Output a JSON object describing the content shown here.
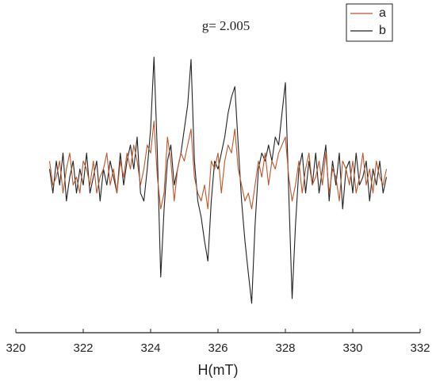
{
  "chart_data": {
    "type": "line",
    "title": "g= 2.005",
    "x_label": "H(mT)",
    "xlim": [
      320,
      332
    ],
    "xticks": [
      320,
      322,
      324,
      326,
      328,
      330,
      332
    ],
    "x": [
      321.0,
      321.1,
      321.2,
      321.3,
      321.4,
      321.5,
      321.6,
      321.7,
      321.8,
      321.9,
      322.0,
      322.1,
      322.2,
      322.3,
      322.4,
      322.5,
      322.6,
      322.7,
      322.8,
      322.9,
      323.0,
      323.1,
      323.2,
      323.3,
      323.4,
      323.5,
      323.6,
      323.7,
      323.8,
      323.9,
      324.0,
      324.1,
      324.2,
      324.3,
      324.4,
      324.5,
      324.6,
      324.7,
      324.8,
      324.9,
      325.0,
      325.1,
      325.2,
      325.3,
      325.4,
      325.5,
      325.6,
      325.7,
      325.8,
      325.9,
      326.0,
      326.1,
      326.2,
      326.3,
      326.4,
      326.5,
      326.6,
      326.7,
      326.8,
      326.9,
      327.0,
      327.1,
      327.2,
      327.3,
      327.4,
      327.5,
      327.6,
      327.7,
      327.8,
      327.9,
      328.0,
      328.1,
      328.2,
      328.3,
      328.4,
      328.5,
      328.6,
      328.7,
      328.8,
      328.9,
      329.0,
      329.1,
      329.2,
      329.3,
      329.4,
      329.5,
      329.6,
      329.7,
      329.8,
      329.9,
      330.0,
      330.1,
      330.2,
      330.3,
      330.4,
      330.5,
      330.6,
      330.7,
      330.8,
      330.9,
      331.0
    ],
    "series": [
      {
        "name": "a",
        "color": "#c0552a",
        "values": [
          2,
          -1,
          0,
          2,
          -2,
          1,
          3,
          -1,
          0,
          -2,
          2,
          1,
          -1,
          2,
          -2,
          0,
          1,
          3,
          -1,
          1,
          -2,
          2,
          0,
          3,
          1,
          4,
          2,
          -1,
          1,
          4,
          3,
          7,
          0,
          -4,
          -2,
          5,
          2,
          -3,
          1,
          3,
          2,
          4,
          6,
          0,
          -2,
          -3,
          -1,
          -4,
          2,
          1,
          3,
          -2,
          2,
          4,
          3,
          6,
          1,
          -1,
          -3,
          -2,
          -4,
          -1,
          2,
          0,
          3,
          -1,
          2,
          1,
          3,
          4,
          5,
          0,
          -3,
          -1,
          2,
          -2,
          1,
          3,
          -1,
          0,
          2,
          -1,
          3,
          -2,
          1,
          0,
          -3,
          2,
          1,
          -1,
          2,
          -2,
          0,
          3,
          -1,
          1,
          -2,
          2,
          0,
          -1,
          1
        ]
      },
      {
        "name": "b",
        "color": "#222222",
        "values": [
          1,
          -2,
          2,
          -1,
          3,
          -3,
          0,
          2,
          -2,
          1,
          -1,
          3,
          -2,
          0,
          2,
          -3,
          1,
          -1,
          2,
          0,
          -2,
          3,
          -1,
          2,
          4,
          1,
          5,
          -2,
          -3,
          1,
          6,
          15,
          3,
          -12.5,
          -4,
          2,
          4,
          -1,
          1,
          3,
          6,
          9,
          14.7,
          2,
          -3,
          -5,
          -8,
          -10.5,
          -3,
          2,
          1,
          3,
          5,
          8,
          10,
          11.3,
          4,
          -3,
          -8,
          -12,
          -15.8,
          -6,
          1,
          3,
          2,
          4,
          2,
          5,
          4,
          8,
          11.8,
          -2,
          -15.2,
          -6,
          1,
          3,
          -2,
          2,
          -1,
          3,
          -2,
          1,
          4,
          -3,
          2,
          -1,
          3,
          -4,
          1,
          2,
          -2,
          3,
          -1,
          0,
          2,
          -3,
          1,
          -1,
          2,
          -2,
          0
        ]
      }
    ]
  }
}
